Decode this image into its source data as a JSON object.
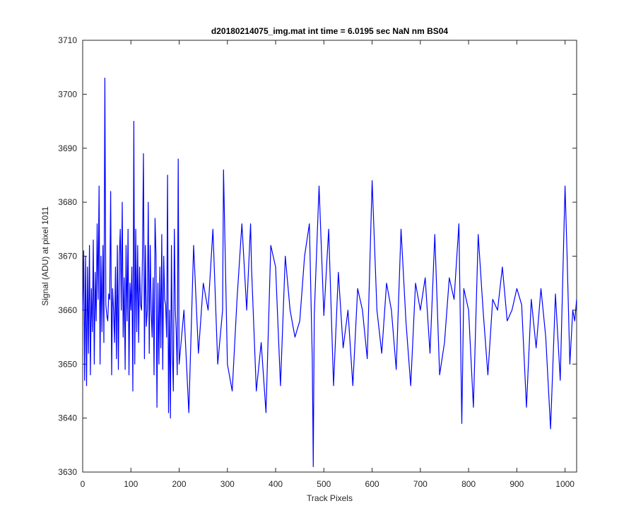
{
  "chart_data": {
    "type": "line",
    "title": "d20180214075_img.mat int time = 6.0195 sec  NaN nm BS04",
    "xlabel": "Track Pixels",
    "ylabel": "Signal (ADU) at pixel 1011",
    "xlim": [
      0,
      1024
    ],
    "ylim": [
      3630,
      3710
    ],
    "xticks": [
      "0",
      "100",
      "200",
      "300",
      "400",
      "500",
      "600",
      "700",
      "800",
      "900",
      "1000"
    ],
    "yticks": [
      "3630",
      "3640",
      "3650",
      "3660",
      "3670",
      "3680",
      "3690",
      "3700",
      "3710"
    ],
    "grid": false,
    "legend": "none",
    "line_color": "#0000ff",
    "series": [
      {
        "x": [
          0,
          2,
          4,
          6,
          8,
          10,
          12,
          14,
          16,
          18,
          20,
          22,
          24,
          26,
          28,
          30,
          32,
          34,
          36,
          38,
          40,
          42,
          44,
          46,
          48,
          50,
          52,
          54,
          56,
          58,
          60,
          62,
          64,
          66,
          68,
          70,
          72,
          74,
          76,
          78,
          80,
          82,
          84,
          86,
          88,
          90,
          92,
          94,
          96,
          98,
          100,
          102,
          104,
          106,
          108,
          110,
          112,
          114,
          116,
          118,
          120,
          122,
          124,
          126,
          128,
          130,
          132,
          134,
          136,
          138,
          140,
          142,
          144,
          146,
          148,
          150,
          152,
          154,
          156,
          158,
          160,
          162,
          164,
          166,
          168,
          170,
          172,
          174,
          176,
          178,
          180,
          182,
          184,
          186,
          188,
          190,
          192,
          194,
          196,
          198,
          200,
          210,
          220,
          230,
          240,
          250,
          260,
          270,
          280,
          290,
          292,
          300,
          310,
          320,
          330,
          340,
          348,
          350,
          360,
          370,
          380,
          390,
          400,
          410,
          420,
          430,
          440,
          450,
          460,
          470,
          476,
          478,
          480,
          490,
          500,
          510,
          520,
          530,
          540,
          550,
          560,
          570,
          580,
          590,
          600,
          610,
          620,
          630,
          640,
          650,
          660,
          670,
          680,
          690,
          700,
          710,
          720,
          730,
          740,
          750,
          760,
          770,
          780,
          786,
          790,
          800,
          810,
          820,
          830,
          840,
          850,
          860,
          870,
          880,
          890,
          900,
          910,
          920,
          930,
          940,
          950,
          960,
          970,
          980,
          990,
          1000,
          1004,
          1010,
          1016,
          1020,
          1024
        ],
        "y": [
          3660,
          3671,
          3647,
          3670,
          3646,
          3668,
          3652,
          3672,
          3648,
          3664,
          3656,
          3673,
          3650,
          3667,
          3658,
          3676,
          3662,
          3683,
          3650,
          3670,
          3656,
          3672,
          3654,
          3703,
          3661,
          3659,
          3658,
          3663,
          3662,
          3682,
          3648,
          3664,
          3660,
          3654,
          3668,
          3651,
          3672,
          3649,
          3670,
          3675,
          3660,
          3680,
          3655,
          3666,
          3649,
          3672,
          3658,
          3675,
          3648,
          3665,
          3660,
          3668,
          3645,
          3695,
          3650,
          3675,
          3656,
          3672,
          3654,
          3668,
          3661,
          3660,
          3670,
          3689,
          3651,
          3672,
          3657,
          3660,
          3680,
          3652,
          3672,
          3660,
          3655,
          3666,
          3648,
          3677,
          3670,
          3642,
          3665,
          3650,
          3668,
          3653,
          3674,
          3649,
          3670,
          3662,
          3661,
          3655,
          3685,
          3641,
          3660,
          3640,
          3672,
          3652,
          3645,
          3675,
          3660,
          3656,
          3648,
          3688,
          3650,
          3660,
          3641,
          3672,
          3652,
          3665,
          3660,
          3675,
          3650,
          3660,
          3686,
          3650,
          3645,
          3662,
          3676,
          3660,
          3676,
          3668,
          3645,
          3654,
          3641,
          3672,
          3668,
          3646,
          3670,
          3660,
          3655,
          3658,
          3670,
          3676,
          3651,
          3631,
          3659,
          3683,
          3659,
          3675,
          3646,
          3667,
          3653,
          3660,
          3646,
          3664,
          3660,
          3651,
          3684,
          3660,
          3652,
          3665,
          3660,
          3649,
          3675,
          3658,
          3646,
          3665,
          3660,
          3666,
          3652,
          3674,
          3648,
          3654,
          3666,
          3662,
          3676,
          3639,
          3664,
          3660,
          3642,
          3674,
          3660,
          3648,
          3662,
          3660,
          3668,
          3658,
          3660,
          3664,
          3661,
          3642,
          3662,
          3653,
          3664,
          3655,
          3638,
          3663,
          3647,
          3683,
          3671,
          3650,
          3660,
          3658,
          3662
        ]
      }
    ]
  }
}
